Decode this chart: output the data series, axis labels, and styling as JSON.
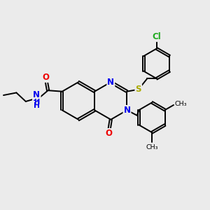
{
  "bg_color": "#ebebeb",
  "bond_color": "#000000",
  "bond_width": 1.4,
  "atom_colors": {
    "N": "#0000ee",
    "O": "#ee0000",
    "S": "#aaaa00",
    "Cl": "#22aa22",
    "C": "#000000",
    "H": "#555555"
  },
  "font_size_atom": 8.5,
  "dbo": 0.055
}
